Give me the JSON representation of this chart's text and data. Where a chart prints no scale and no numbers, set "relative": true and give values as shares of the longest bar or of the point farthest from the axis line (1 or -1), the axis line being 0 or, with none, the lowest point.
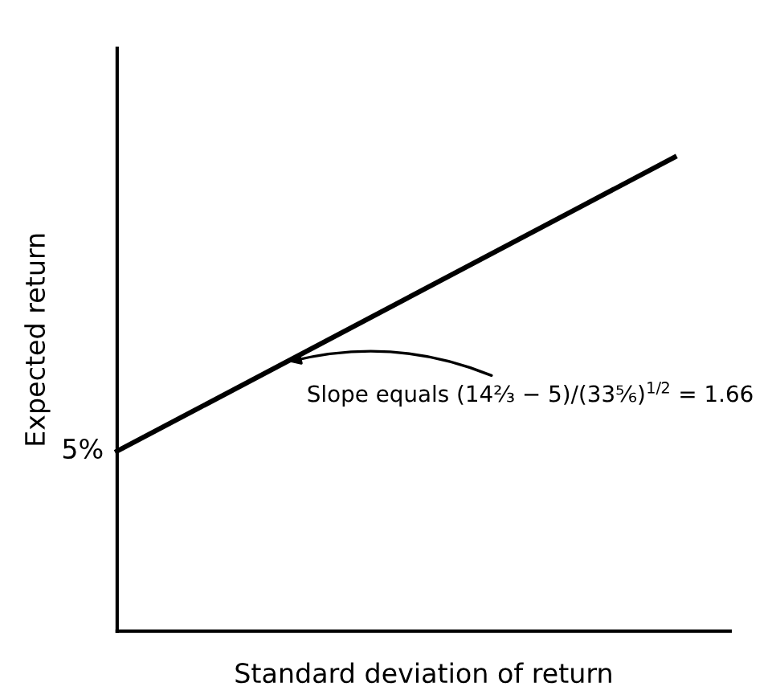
{
  "chart_data": {
    "type": "line",
    "xlabel": "Standard deviation of return",
    "ylabel": "Expected return",
    "categories": [
      null,
      null
    ],
    "series": [
      {
        "color": "#000000",
        "values": [
          0.38,
          1
        ]
      }
    ],
    "relative": true,
    "annotations": [
      "5%",
      "Slope equals (14⅔ − 5)/(33⅚)$^{1/2}$ = 1.66"
    ],
    "marker": "none",
    "line_style": "solid"
  }
}
